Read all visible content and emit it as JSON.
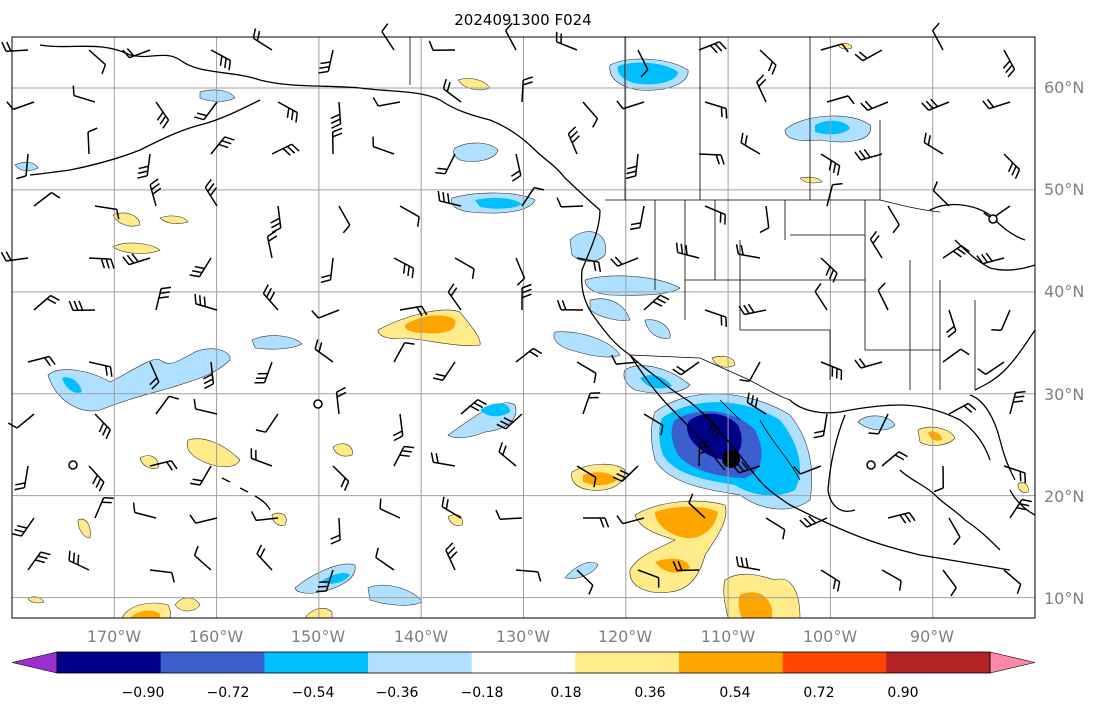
{
  "title": "2024091300 F024",
  "lat_labels": [
    "60°N",
    "50°N",
    "40°N",
    "30°N",
    "20°N",
    "10°N"
  ],
  "lon_labels": [
    "170°W",
    "160°W",
    "150°W",
    "140°W",
    "130°W",
    "120°W",
    "110°W",
    "100°W",
    "90°W"
  ],
  "colorbar": {
    "ticks": [
      "−0.90",
      "−0.72",
      "−0.54",
      "−0.36",
      "−0.18",
      "0.18",
      "0.36",
      "0.54",
      "0.72",
      "0.90"
    ],
    "colors": [
      "#9b30d0",
      "#00008b",
      "#3a5fcd",
      "#00bfff",
      "#b0e0ff",
      "#ffffff",
      "#ffeb8a",
      "#ffa500",
      "#ff4500",
      "#b22222",
      "#ff88aa"
    ]
  },
  "map": {
    "extent_lon": [
      -180,
      -80
    ],
    "extent_lat": [
      8,
      65
    ],
    "grid_lons": [
      -170,
      -160,
      -150,
      -140,
      -130,
      -120,
      -110,
      -100,
      -90
    ],
    "grid_lats": [
      10,
      20,
      30,
      40,
      50,
      60
    ],
    "land_color": "#ffffff",
    "grid_color": "#a0a0a0"
  }
}
